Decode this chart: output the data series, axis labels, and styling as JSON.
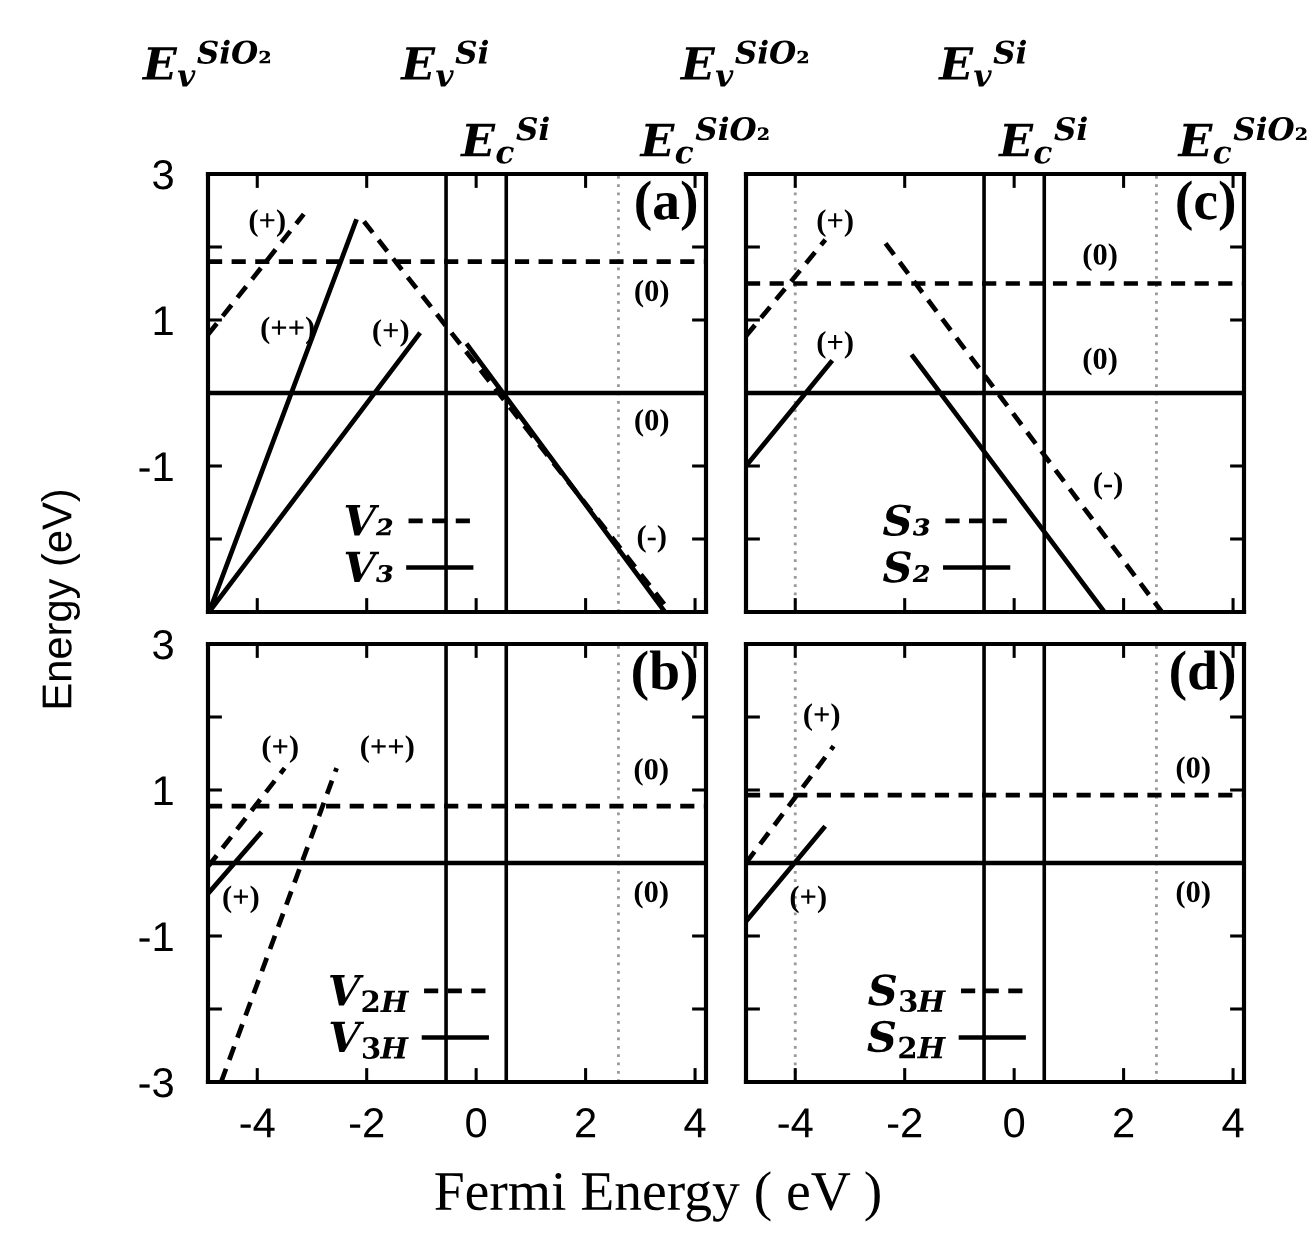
{
  "chart_data": [
    {
      "type": "line",
      "ylabel": "Energy (eV)",
      "xlim": [
        -4.9,
        4.2
      ],
      "ylim": [
        -3,
        3
      ],
      "xticks": [
        -4,
        -2,
        0,
        2,
        4
      ],
      "yticks": [
        {
          "value": -3,
          "label": null
        },
        {
          "value": -2,
          "label": null
        },
        -1,
        {
          "value": 0,
          "label": null
        },
        1,
        {
          "value": 2,
          "label": null
        },
        3
      ],
      "tick_labels": "y",
      "legend": "bottom",
      "series": [
        {
          "name": "V₂",
          "color": "#000000",
          "line_style": "dashed",
          "x": [
            -4.9,
            -3.15,
            null,
            -4.9,
            4.2,
            null,
            -2.05,
            3.55
          ],
          "values": [
            0.8,
            2.45,
            null,
            1.8,
            1.8,
            null,
            2.35,
            -3.0
          ]
        },
        {
          "name": "V₃",
          "color": "#000000",
          "line_style": "solid",
          "x": [
            -4.88,
            -2.2,
            null,
            -4.88,
            -1.05,
            null,
            -4.9,
            4.2,
            null,
            -0.15,
            3.45
          ],
          "values": [
            -3.0,
            2.35,
            null,
            -3.0,
            0.8,
            null,
            0,
            0,
            null,
            0.65,
            -3.0
          ]
        }
      ],
      "ref_lines": [
        {
          "axis": "x",
          "value": -0.55,
          "label": "E$_{v}$$^{Si}$",
          "color": "#000000"
        },
        {
          "axis": "x",
          "value": 0.55,
          "label": "E$_{c}$$^{Si}$",
          "color": "#000000"
        },
        {
          "axis": "x",
          "value": 2.6,
          "color": "#999999",
          "line_style": "dotted"
        }
      ],
      "annotations": [
        "(a)",
        "(+)",
        "(++)",
        "(+)",
        "(0)",
        "(0)",
        "(-)",
        "E$_{v}$$^{SiO₂}$",
        "E$_{c}$$^{SiO₂}$"
      ]
    },
    {
      "type": "line",
      "xlim": [
        -4.9,
        4.2
      ],
      "ylim": [
        -3,
        3
      ],
      "xticks": [
        -4,
        -2,
        0,
        2,
        4
      ],
      "yticks": [
        {
          "value": -3,
          "label": null
        },
        {
          "value": -2,
          "label": null
        },
        -1,
        {
          "value": 0,
          "label": null
        },
        1,
        {
          "value": 2,
          "label": null
        },
        3
      ],
      "tick_labels": false,
      "legend": "bottom",
      "series": [
        {
          "name": "S₃",
          "color": "#000000",
          "line_style": "dashed",
          "x": [
            -4.9,
            -3.45,
            null,
            -4.9,
            4.2,
            null,
            -2.35,
            2.7
          ],
          "values": [
            0.78,
            2.1,
            null,
            1.5,
            1.5,
            null,
            2.05,
            -3.0
          ]
        },
        {
          "name": "S₂",
          "color": "#000000",
          "line_style": "solid",
          "x": [
            -4.9,
            -3.35,
            null,
            -4.9,
            4.2,
            null,
            -1.85,
            1.65
          ],
          "values": [
            -1.0,
            0.42,
            null,
            0,
            0,
            null,
            0.5,
            -3.0
          ]
        }
      ],
      "ref_lines": [
        {
          "axis": "x",
          "value": -0.55,
          "label": "E$_{v}$$^{Si}$",
          "color": "#000000"
        },
        {
          "axis": "x",
          "value": 0.55,
          "label": "E$_{c}$$^{Si}$",
          "color": "#000000"
        },
        {
          "axis": "x",
          "value": -4,
          "color": "#999999",
          "line_style": "dotted"
        },
        {
          "axis": "x",
          "value": 2.6,
          "color": "#999999",
          "line_style": "dotted"
        }
      ],
      "annotations": [
        "(c)",
        "(+)",
        "(+)",
        "(0)",
        "(0)",
        "(-)",
        "E$_{v}$$^{SiO₂}$",
        "E$_{c}$$^{SiO₂}$"
      ]
    },
    {
      "type": "line",
      "xlabel": "Fermi Energy ( eV )",
      "xlim": [
        -4.9,
        4.2
      ],
      "ylim": [
        -3,
        3
      ],
      "xticks": [
        -4,
        -2,
        0,
        2,
        4
      ],
      "yticks": [
        -3,
        {
          "value": -2,
          "label": null
        },
        -1,
        {
          "value": 0,
          "label": null
        },
        1,
        {
          "value": 2,
          "label": null
        },
        3
      ],
      "legend": "bottom",
      "series": [
        {
          "name": "V$_{2H}$",
          "color": "#000000",
          "line_style": "dashed",
          "x": [
            -4.9,
            -3.5,
            null,
            -4.66,
            -2.55,
            null,
            -4.9,
            4.2
          ],
          "values": [
            -0.05,
            1.3,
            null,
            -3.0,
            1.3,
            null,
            0.78,
            0.78
          ]
        },
        {
          "name": "V$_{3H}$",
          "color": "#000000",
          "line_style": "solid",
          "x": [
            -4.9,
            -3.95,
            null,
            -4.9,
            4.2
          ],
          "values": [
            -0.42,
            0.4,
            null,
            0,
            0
          ]
        }
      ],
      "ref_lines": [
        {
          "axis": "x",
          "value": -0.55,
          "color": "#000000"
        },
        {
          "axis": "x",
          "value": 0.55,
          "color": "#000000"
        },
        {
          "axis": "x",
          "value": 2.6,
          "color": "#999999",
          "line_style": "dotted"
        }
      ],
      "annotations": [
        "(b)",
        "(+)",
        "(++)",
        "(0)",
        "(+)",
        "(0)"
      ]
    },
    {
      "type": "line",
      "xlim": [
        -4.9,
        4.2
      ],
      "ylim": [
        -3,
        3
      ],
      "xticks": [
        -4,
        -2,
        0,
        2,
        4
      ],
      "yticks": [
        -3,
        {
          "value": -2,
          "label": null
        },
        -1,
        {
          "value": 0,
          "label": null
        },
        1,
        {
          "value": 2,
          "label": null
        },
        3
      ],
      "tick_labels": "x",
      "legend": "bottom",
      "series": [
        {
          "name": "S$_{3H}$",
          "color": "#000000",
          "line_style": "dashed",
          "x": [
            -4.9,
            -3.3,
            null,
            -4.9,
            4.2
          ],
          "values": [
            0.0,
            1.6,
            null,
            0.93,
            0.93
          ]
        },
        {
          "name": "S$_{2H}$",
          "color": "#000000",
          "line_style": "solid",
          "x": [
            -4.9,
            -3.48,
            null,
            -4.9,
            4.2
          ],
          "values": [
            -0.8,
            0.48,
            null,
            0,
            0
          ]
        }
      ],
      "ref_lines": [
        {
          "axis": "x",
          "value": -0.55,
          "color": "#000000"
        },
        {
          "axis": "x",
          "value": 0.55,
          "color": "#000000"
        },
        {
          "axis": "x",
          "value": -4,
          "color": "#999999",
          "line_style": "dotted"
        },
        {
          "axis": "x",
          "value": 2.6,
          "color": "#999999",
          "line_style": "dotted"
        }
      ],
      "annotations": [
        "(d)",
        "(+)",
        "(0)",
        "(+)",
        "(0)"
      ]
    }
  ]
}
